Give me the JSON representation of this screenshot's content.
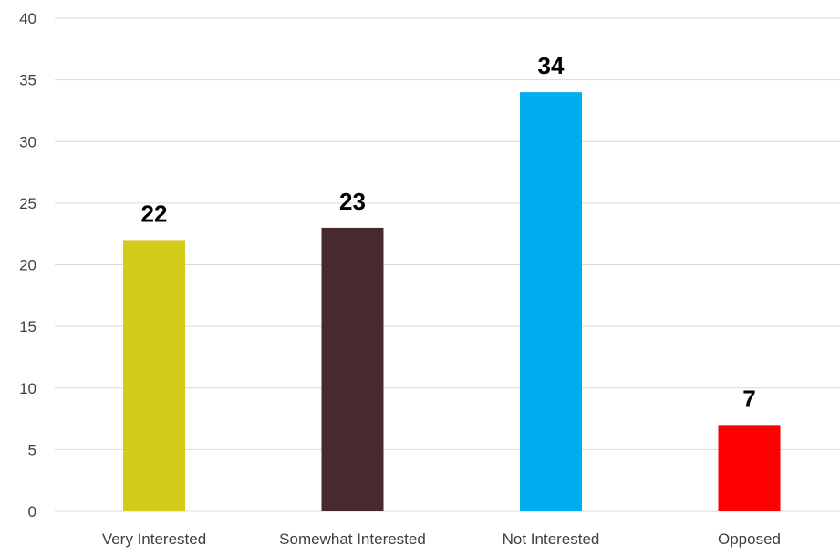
{
  "chart_data": {
    "type": "bar",
    "title": "",
    "xlabel": "",
    "ylabel": "",
    "categories": [
      "Very Interested",
      "Somewhat Interested",
      "Not Interested",
      "Opposed"
    ],
    "values": [
      22,
      23,
      34,
      7
    ],
    "colors": [
      "#d4cc1a",
      "#472a2d",
      "#00aeef",
      "#ff0000"
    ],
    "ylim": [
      0,
      40
    ],
    "yticks": [
      0,
      5,
      10,
      15,
      20,
      25,
      30,
      35,
      40
    ],
    "grid": true,
    "legend": "none",
    "data_labels": true
  }
}
